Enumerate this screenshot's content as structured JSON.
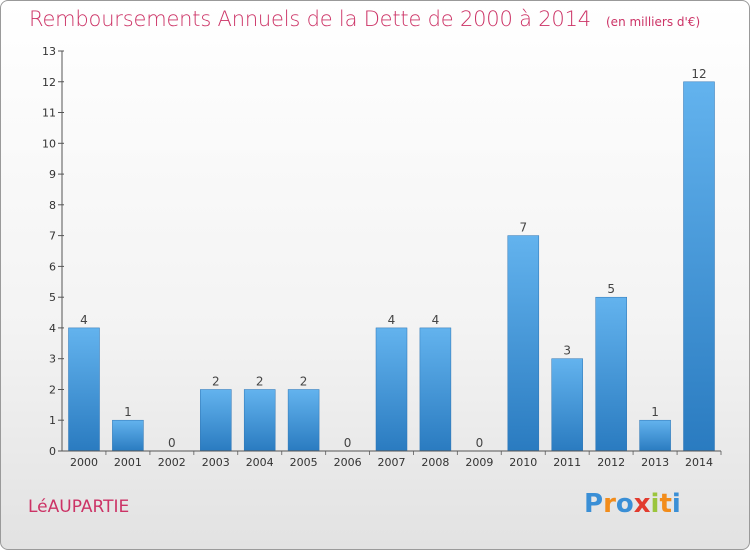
{
  "header": {
    "title": "Remboursements Annuels de la Dette de 2000 à 2014",
    "subtitle": "(en milliers d'€)"
  },
  "footer": {
    "commune": "LéAUPARTIE",
    "logo_letters": [
      "P",
      "r",
      "o",
      "x",
      "i",
      "t",
      "i"
    ],
    "logo_colors": [
      "#3a8fd6",
      "#f28c1a",
      "#3a8fd6",
      "#e23b2e",
      "#9bc53d",
      "#f28c1a",
      "#3a8fd6"
    ]
  },
  "chart_data": {
    "type": "bar",
    "categories": [
      "2000",
      "2001",
      "2002",
      "2003",
      "2004",
      "2005",
      "2006",
      "2007",
      "2008",
      "2009",
      "2010",
      "2011",
      "2012",
      "2013",
      "2014"
    ],
    "values": [
      4,
      1,
      0,
      2,
      2,
      2,
      0,
      4,
      4,
      0,
      7,
      3,
      5,
      1,
      12
    ],
    "ylim": [
      0,
      13
    ],
    "yticks": [
      0,
      1,
      2,
      3,
      4,
      5,
      6,
      7,
      8,
      9,
      10,
      11,
      12,
      13
    ],
    "grid": false,
    "bar_color_top": "#63b3ee",
    "bar_color_bottom": "#2a7bc0"
  }
}
